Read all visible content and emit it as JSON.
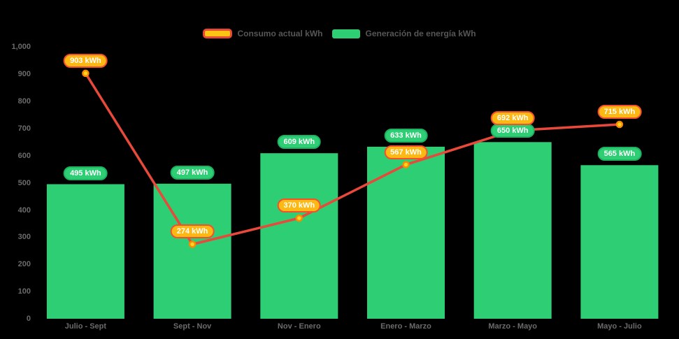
{
  "chart_data": {
    "type": "combo-bar-line",
    "title": "",
    "background": "#000000",
    "grid": false,
    "unit_suffix": " kWh",
    "categories": [
      "Julio - Sept",
      "Sept - Nov",
      "Nov - Enero",
      "Enero - Marzo",
      "Marzo - Mayo",
      "Mayo - Julio"
    ],
    "series": [
      {
        "name": "Consumo actual kWh",
        "type": "line",
        "values": [
          903,
          274,
          370,
          567,
          692,
          715
        ],
        "data_labels": [
          "903 kWh",
          "274 kWh",
          "370 kWh",
          "567 kWh",
          "692 kWh",
          "715 kWh"
        ],
        "line_color": "#e8493a",
        "marker": {
          "fill": "#ffd321",
          "stroke": "#fb8c00"
        },
        "label_style": {
          "bg": "#fcb813",
          "border": "#f4502d",
          "text": "#ffffff"
        },
        "legend_swatch": {
          "fill": "#fdc513",
          "border": "#ea4734"
        }
      },
      {
        "name": "Generación de energía kWh",
        "type": "bar",
        "values": [
          495,
          497,
          609,
          633,
          650,
          565
        ],
        "data_labels": [
          "495 kWh",
          "497 kWh",
          "609 kWh",
          "633 kWh",
          "650 kWh",
          "565 kWh"
        ],
        "bar_color": "#2dce74",
        "label_style": {
          "bg": "#2dce74",
          "border": "#1db262",
          "text": "#ffffff"
        },
        "legend_swatch": {
          "fill": "#2dce74",
          "border": "#2dce74"
        }
      }
    ],
    "yaxis": {
      "min": 0,
      "max": 1000,
      "tick_interval": 100,
      "tick_labels": [
        "0",
        "100",
        "200",
        "300",
        "400",
        "500",
        "600",
        "700",
        "800",
        "900",
        "1,000"
      ],
      "label_color": "#6b6b6b"
    },
    "xaxis": {
      "label_color": "#6b6b6b"
    },
    "legend": {
      "position": "top",
      "text_color": "#565656"
    }
  }
}
